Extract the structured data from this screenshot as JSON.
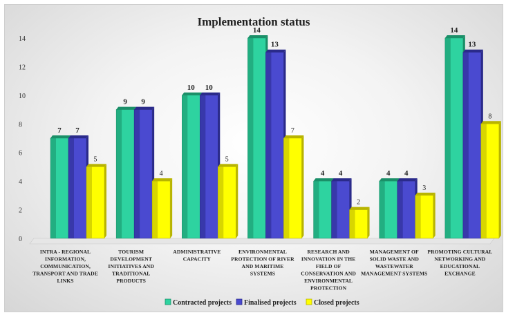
{
  "chart_data": {
    "type": "bar",
    "title": "Implementation status",
    "categories": [
      [
        "INTRA - REGIONAL",
        "INFORMATION,",
        "COMMUNICATION,",
        "TRANSPORT AND TRADE",
        "LINKS"
      ],
      [
        "TOURISM",
        "DEVELOPMENT",
        "INITIATIVES AND",
        "TRADITIONAL",
        "PRODUCTS"
      ],
      [
        "ADMINISTRATIVE",
        "CAPACITY"
      ],
      [
        "ENVIRONMENTAL",
        "PROTECTION OF RIVER",
        "AND MARITIME",
        "SYSTEMS"
      ],
      [
        "RESEARCH AND",
        "INNOVATION IN THE",
        "FIELD OF",
        "CONSERVATION AND",
        "ENVIRONMENTAL",
        "PROTECTION"
      ],
      [
        "MANAGEMENT OF",
        "SOLID WASTE AND",
        "WASTEWATER",
        "MANAGEMENT SYSTEMS"
      ],
      [
        "PROMOTING CULTURAL",
        "NETWORKING AND",
        "EDUCATIONAL",
        "EXCHANGE"
      ]
    ],
    "series": [
      {
        "name": "Contracted projects",
        "values": [
          7,
          9,
          10,
          14,
          4,
          4,
          14
        ],
        "color": "#2ed3a0",
        "dark": "#1a8f68"
      },
      {
        "name": "Finalised projects",
        "values": [
          7,
          9,
          10,
          13,
          4,
          4,
          13
        ],
        "color": "#4a4ad0",
        "dark": "#2a2a8a"
      },
      {
        "name": "Closed projects",
        "values": [
          5,
          4,
          5,
          7,
          2,
          3,
          8
        ],
        "color": "#ffff00",
        "dark": "#b8b400"
      }
    ],
    "ylim": [
      0,
      14
    ],
    "yticks": [
      0,
      2,
      4,
      6,
      8,
      10,
      12,
      14
    ],
    "xlabel": "",
    "ylabel": "",
    "grid": false,
    "legend": "bottom"
  }
}
